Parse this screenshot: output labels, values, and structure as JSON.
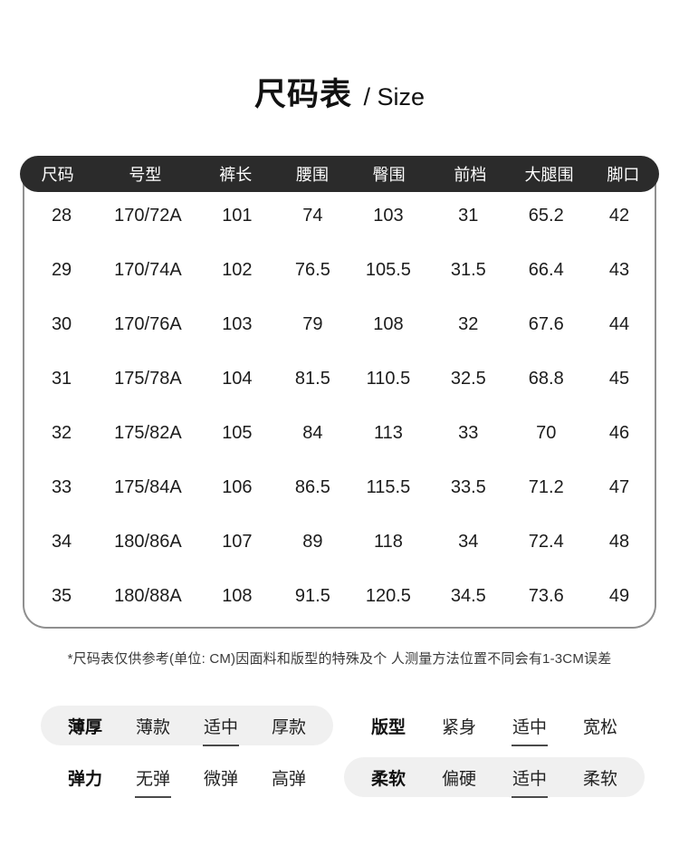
{
  "title": {
    "main": "尺码表",
    "suffix": "/ Size"
  },
  "table": {
    "headers": [
      "尺码",
      "号型",
      "裤长",
      "腰围",
      "臀围",
      "前档",
      "大腿围",
      "脚口"
    ],
    "rows": [
      [
        "28",
        "170/72A",
        "101",
        "74",
        "103",
        "31",
        "65.2",
        "42"
      ],
      [
        "29",
        "170/74A",
        "102",
        "76.5",
        "105.5",
        "31.5",
        "66.4",
        "43"
      ],
      [
        "30",
        "170/76A",
        "103",
        "79",
        "108",
        "32",
        "67.6",
        "44"
      ],
      [
        "31",
        "175/78A",
        "104",
        "81.5",
        "110.5",
        "32.5",
        "68.8",
        "45"
      ],
      [
        "32",
        "175/82A",
        "105",
        "84",
        "113",
        "33",
        "70",
        "46"
      ],
      [
        "33",
        "175/84A",
        "106",
        "86.5",
        "115.5",
        "33.5",
        "71.2",
        "47"
      ],
      [
        "34",
        "180/86A",
        "107",
        "89",
        "118",
        "34",
        "72.4",
        "48"
      ],
      [
        "35",
        "180/88A",
        "108",
        "91.5",
        "120.5",
        "34.5",
        "73.6",
        "49"
      ]
    ]
  },
  "note": "*尺码表仅供参考(单位: CM)因面料和版型的特殊及个 人测量方法位置不同会有1-3CM误差",
  "attributes": [
    {
      "label": "薄厚",
      "options": [
        "薄款",
        "适中",
        "厚款"
      ],
      "selected": 1,
      "pill": true
    },
    {
      "label": "版型",
      "options": [
        "紧身",
        "适中",
        "宽松"
      ],
      "selected": 1,
      "pill": false
    },
    {
      "label": "弹力",
      "options": [
        "无弹",
        "微弹",
        "高弹"
      ],
      "selected": 0,
      "pill": false
    },
    {
      "label": "柔软",
      "options": [
        "偏硬",
        "适中",
        "柔软"
      ],
      "selected": 1,
      "pill": true
    }
  ],
  "colors": {
    "header_bg": "#2b2b2b",
    "header_text": "#ffffff",
    "body_text": "#1c1c1c",
    "table_border": "#8f8f8f",
    "pill_bg": "#f0f0f0",
    "underline": "#4a4a4a"
  }
}
